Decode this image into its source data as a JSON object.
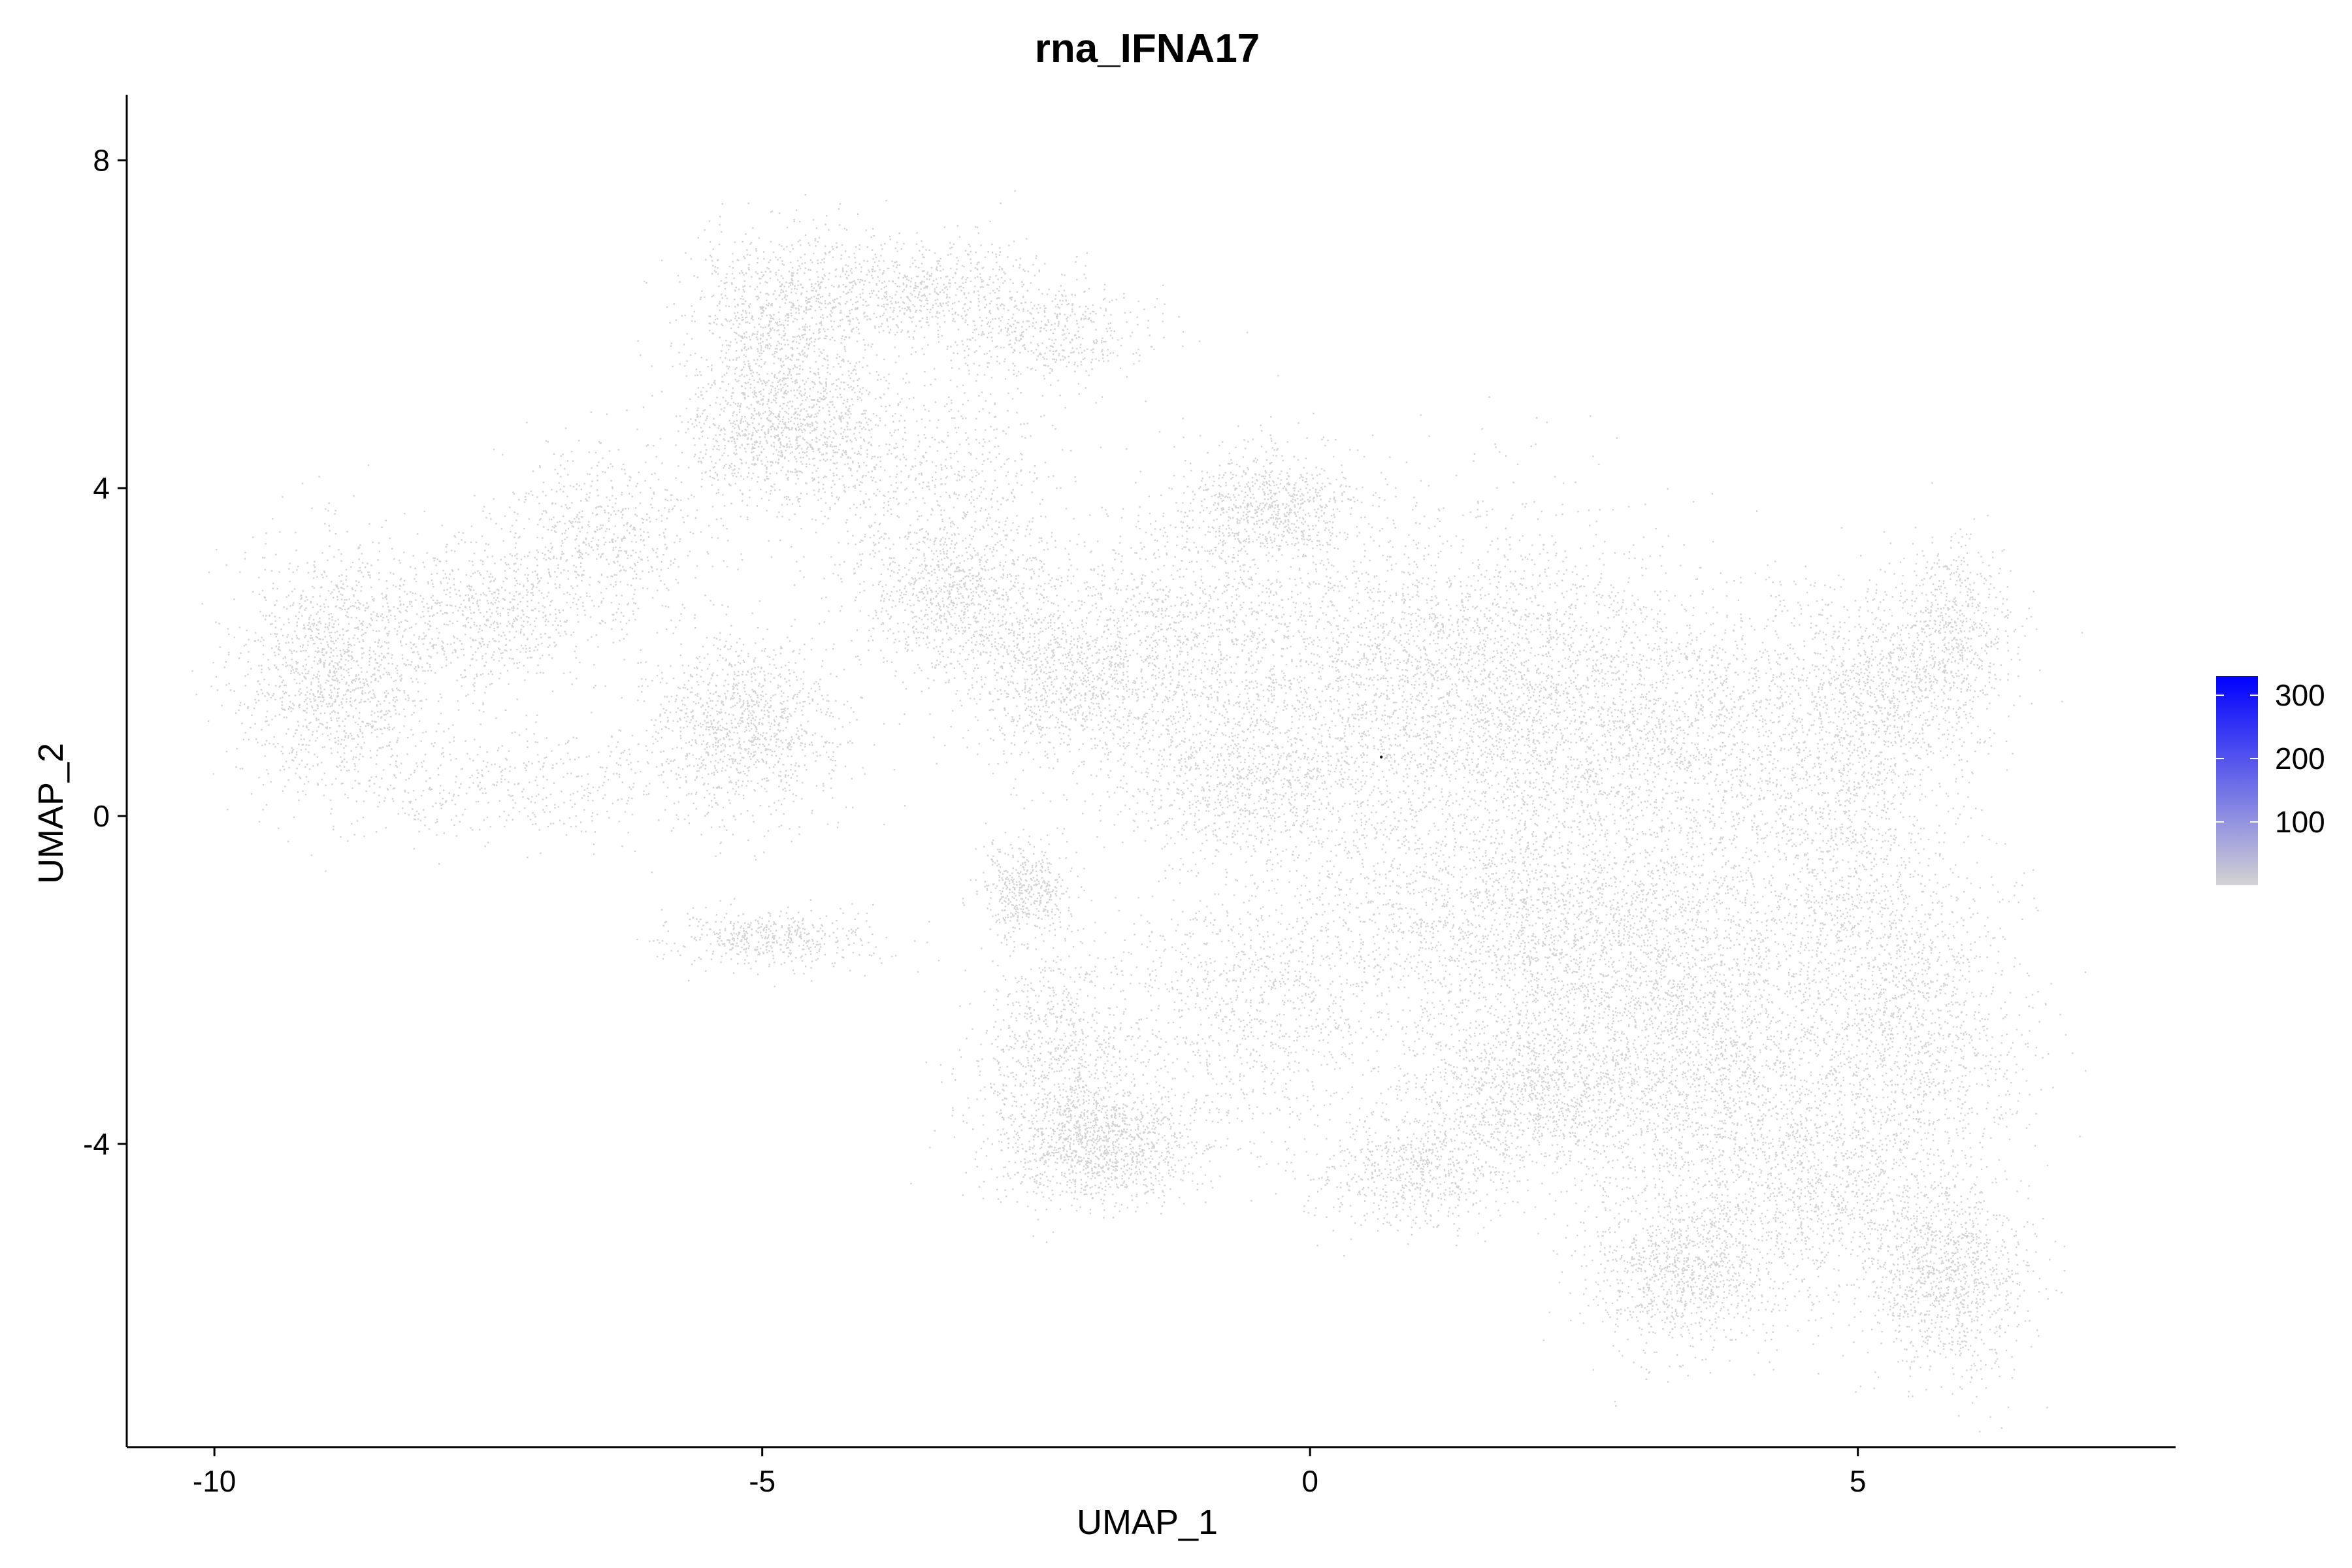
{
  "chart_data": {
    "type": "scatter",
    "title": "rna_IFNA17",
    "xlabel": "UMAP_1",
    "ylabel": "UMAP_2",
    "xlim": [
      -10.8,
      7.9
    ],
    "ylim": [
      -7.7,
      8.8
    ],
    "x_ticks": [
      -10,
      -5,
      0,
      5
    ],
    "y_ticks": [
      -4,
      0,
      4,
      8
    ],
    "x_tick_labels": [
      "-10",
      "-5",
      "0",
      "5"
    ],
    "y_tick_labels": [
      "-4",
      "0",
      "4",
      "8"
    ],
    "grid": false,
    "legend": {
      "placement": "right",
      "type": "colorbar",
      "ticks": [
        100,
        200,
        300
      ],
      "tick_labels": [
        "100",
        "200",
        "300"
      ],
      "range": [
        0,
        330
      ],
      "low_color": "#d3d3d3",
      "high_color": "#0000ff"
    },
    "point_color": "#d3d3d3",
    "expressing_points": [
      {
        "x": 0.65,
        "y": 0.72
      }
    ],
    "clusters": [
      {
        "cx": -8.9,
        "cy": 1.8,
        "sx": 0.45,
        "sy": 0.75,
        "w": 6
      },
      {
        "cx": -7.6,
        "cy": 2.4,
        "sx": 0.55,
        "sy": 0.45,
        "w": 3
      },
      {
        "cx": -6.5,
        "cy": 3.4,
        "sx": 0.5,
        "sy": 0.55,
        "w": 3
      },
      {
        "cx": -7.3,
        "cy": 0.4,
        "sx": 0.8,
        "sy": 0.35,
        "w": 2
      },
      {
        "cx": -4.8,
        "cy": 6.1,
        "sx": 0.45,
        "sy": 0.5,
        "w": 4
      },
      {
        "cx": -4.8,
        "cy": 4.7,
        "sx": 0.45,
        "sy": 0.45,
        "w": 5
      },
      {
        "cx": -3.6,
        "cy": 6.4,
        "sx": 0.6,
        "sy": 0.35,
        "w": 3
      },
      {
        "cx": -2.4,
        "cy": 5.9,
        "sx": 0.5,
        "sy": 0.3,
        "w": 2
      },
      {
        "cx": -3.4,
        "cy": 4.0,
        "sx": 0.55,
        "sy": 0.7,
        "w": 3
      },
      {
        "cx": -5.2,
        "cy": 1.1,
        "sx": 0.45,
        "sy": 0.55,
        "w": 5
      },
      {
        "cx": -3.2,
        "cy": 2.6,
        "sx": 0.5,
        "sy": 0.5,
        "w": 4
      },
      {
        "cx": -2.2,
        "cy": 1.6,
        "sx": 0.5,
        "sy": 0.5,
        "w": 4
      },
      {
        "cx": -4.9,
        "cy": -1.5,
        "sx": 0.5,
        "sy": 0.18,
        "w": 2
      },
      {
        "cx": -2.6,
        "cy": -0.9,
        "sx": 0.2,
        "sy": 0.3,
        "w": 2
      },
      {
        "cx": -1.9,
        "cy": -4.0,
        "sx": 0.45,
        "sy": 0.35,
        "w": 5
      },
      {
        "cx": -2.3,
        "cy": -3.0,
        "sx": 0.4,
        "sy": 0.7,
        "w": 4
      },
      {
        "cx": -0.6,
        "cy": -2.3,
        "sx": 0.6,
        "sy": 0.8,
        "w": 4
      },
      {
        "cx": -0.4,
        "cy": 3.8,
        "sx": 0.4,
        "sy": 0.35,
        "w": 3
      },
      {
        "cx": -1.0,
        "cy": 2.3,
        "sx": 0.7,
        "sy": 0.8,
        "w": 5
      },
      {
        "cx": -0.6,
        "cy": 0.4,
        "sx": 0.6,
        "sy": 0.5,
        "w": 4
      },
      {
        "cx": 0.8,
        "cy": 1.5,
        "sx": 0.9,
        "sy": 1.1,
        "w": 8
      },
      {
        "cx": 2.0,
        "cy": 1.5,
        "sx": 0.8,
        "sy": 1.0,
        "w": 7
      },
      {
        "cx": 3.5,
        "cy": 1.1,
        "sx": 0.9,
        "sy": 0.8,
        "w": 7
      },
      {
        "cx": 1.6,
        "cy": -1.3,
        "sx": 0.9,
        "sy": 0.8,
        "w": 7
      },
      {
        "cx": 3.2,
        "cy": -1.6,
        "sx": 0.9,
        "sy": 0.9,
        "w": 8
      },
      {
        "cx": 2.0,
        "cy": -3.3,
        "sx": 0.6,
        "sy": 0.5,
        "w": 5
      },
      {
        "cx": 3.6,
        "cy": -3.3,
        "sx": 0.8,
        "sy": 0.8,
        "w": 7
      },
      {
        "cx": 3.4,
        "cy": -5.5,
        "sx": 0.45,
        "sy": 0.5,
        "w": 5
      },
      {
        "cx": 0.9,
        "cy": -4.3,
        "sx": 0.5,
        "sy": 0.35,
        "w": 3
      },
      {
        "cx": 4.9,
        "cy": -0.5,
        "sx": 0.5,
        "sy": 1.2,
        "w": 5
      },
      {
        "cx": 5.3,
        "cy": 1.6,
        "sx": 0.5,
        "sy": 0.6,
        "w": 4
      },
      {
        "cx": 5.9,
        "cy": 2.4,
        "sx": 0.25,
        "sy": 0.5,
        "w": 2
      },
      {
        "cx": 5.6,
        "cy": -2.7,
        "sx": 0.5,
        "sy": 0.9,
        "w": 5
      },
      {
        "cx": 5.8,
        "cy": -5.6,
        "sx": 0.35,
        "sy": 0.6,
        "w": 5
      },
      {
        "cx": 4.7,
        "cy": -4.5,
        "sx": 0.5,
        "sy": 0.7,
        "w": 4
      }
    ]
  }
}
